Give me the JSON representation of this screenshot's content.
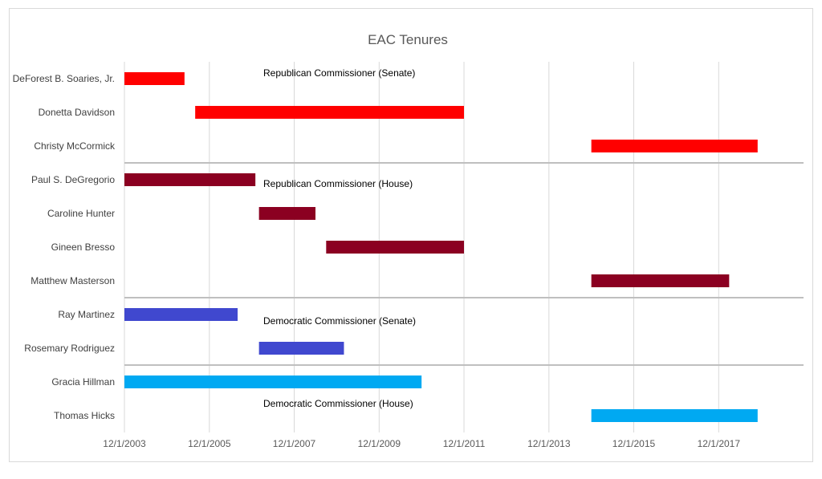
{
  "chart_data": {
    "type": "bar",
    "orientation": "horizontal-gantt",
    "title": "EAC Tenures",
    "xlabel": "",
    "ylabel": "",
    "x_axis": {
      "start": "2003-12-01",
      "end": "2019-12-01",
      "tick_values": [
        "2003-12-01",
        "2005-12-01",
        "2007-12-01",
        "2009-12-01",
        "2011-12-01",
        "2013-12-01",
        "2015-12-01",
        "2017-12-01"
      ],
      "tick_labels": [
        "12/1/2003",
        "12/1/2005",
        "12/1/2007",
        "12/1/2009",
        "12/1/2011",
        "12/1/2013",
        "12/1/2015",
        "12/1/2017"
      ]
    },
    "grid": {
      "vertical": true,
      "horizontal": false
    },
    "groups": [
      {
        "label": "Republican Commissioner (Senate)",
        "color": "#ff0000",
        "members": [
          {
            "name": "DeForest B. Soaries, Jr.",
            "start": "2003-12-01",
            "end": "2005-05-01"
          },
          {
            "name": "Donetta Davidson",
            "start": "2005-08-01",
            "end": "2011-12-01"
          },
          {
            "name": "Christy McCormick",
            "start": "2014-12-01",
            "end": "2018-11-01"
          }
        ]
      },
      {
        "label": "Republican Commissioner (House)",
        "color": "#8b0021",
        "members": [
          {
            "name": "Paul S. DeGregorio",
            "start": "2003-12-01",
            "end": "2007-01-01"
          },
          {
            "name": "Caroline Hunter",
            "start": "2007-02-01",
            "end": "2008-06-01"
          },
          {
            "name": "Gineen Bresso",
            "start": "2008-09-01",
            "end": "2011-12-01"
          },
          {
            "name": "Matthew Masterson",
            "start": "2014-12-01",
            "end": "2018-03-01"
          }
        ]
      },
      {
        "label": "Democratic Commissioner (Senate)",
        "color": "#4048cf",
        "members": [
          {
            "name": "Ray Martinez",
            "start": "2003-12-01",
            "end": "2006-08-01"
          },
          {
            "name": "Rosemary Rodriguez",
            "start": "2007-02-01",
            "end": "2009-02-01"
          }
        ]
      },
      {
        "label": "Democratic Commissioner (House)",
        "color": "#00a9f2",
        "members": [
          {
            "name": "Gracia Hillman",
            "start": "2003-12-01",
            "end": "2010-12-01"
          },
          {
            "name": "Thomas Hicks",
            "start": "2014-12-01",
            "end": "2018-11-01"
          }
        ]
      }
    ]
  }
}
